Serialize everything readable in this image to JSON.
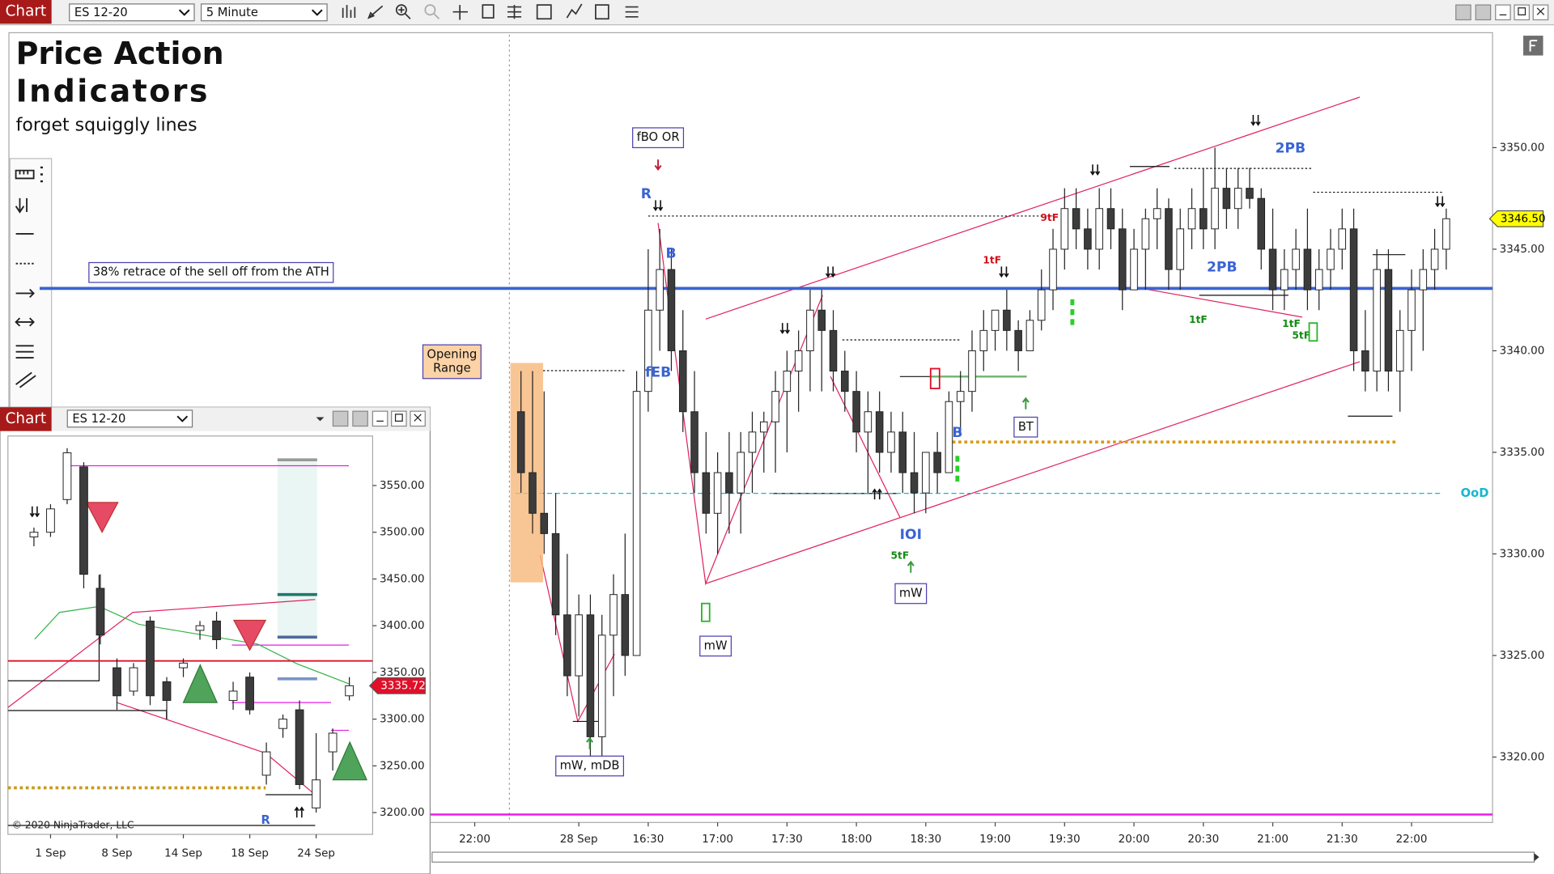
{
  "toolbar": {
    "app": "Chart",
    "instrument": "ES 12-20",
    "interval": "5 Minute"
  },
  "chart_data": [
    {
      "type": "candlestick",
      "title": [
        "Price Action",
        "Indicators"
      ],
      "subtitle": "forget squiggly lines",
      "categories": [
        "22:00",
        null,
        null,
        null,
        null,
        null,
        null,
        null,
        null,
        "28 Sep",
        null,
        null,
        null,
        null,
        null,
        "16:30",
        null,
        null,
        null,
        null,
        null,
        "17:00",
        null,
        null,
        null,
        null,
        null,
        "17:30",
        null,
        null,
        null,
        null,
        null,
        "18:00",
        null,
        null,
        null,
        null,
        null,
        "18:30",
        null,
        null,
        null,
        null,
        null,
        "19:00",
        null,
        null,
        null,
        null,
        null,
        "19:30",
        null,
        null,
        null,
        null,
        null,
        "20:00",
        null,
        null,
        null,
        null,
        null,
        "20:30",
        null,
        null,
        null,
        null,
        null,
        "21:00",
        null,
        null,
        null,
        null,
        null,
        "21:30",
        null,
        null,
        null,
        null,
        null,
        "22:00",
        null,
        null,
        null
      ],
      "open": [
        null,
        null,
        null,
        null,
        3337,
        3334,
        3332,
        3331,
        3327,
        3324,
        3327,
        3321,
        3326,
        3328,
        3325,
        3338,
        3342,
        3344,
        3340,
        3337,
        3334,
        3332,
        3334,
        3333,
        3335,
        3336,
        3336.5,
        3338,
        3339,
        3340,
        3342,
        3341,
        3339,
        3338,
        3336,
        3337,
        3335,
        3336,
        3334,
        3333,
        3335,
        3334,
        3337.5,
        3338,
        3340,
        3341,
        3342,
        3341,
        3340,
        3341.5,
        3343,
        3345,
        3347,
        3346,
        3345,
        3347,
        3346,
        3343,
        3345,
        3346.5,
        3347,
        3344,
        3346,
        3347,
        3346,
        3348,
        3347,
        3348,
        3347.5,
        3345,
        3343,
        3344,
        3345,
        3343,
        3344,
        3345,
        3346,
        3340,
        3339,
        3344,
        3339,
        3341,
        3343,
        3344,
        3345
      ],
      "high": [
        null,
        null,
        null,
        null,
        3339,
        3339,
        3338,
        3333,
        3330,
        3328,
        3328,
        3327,
        3329,
        3331,
        3339,
        3345,
        3346,
        3345,
        3342,
        3339,
        3336,
        3335,
        3336,
        3336,
        3337,
        3337,
        3339,
        3340,
        3341,
        3343,
        3343,
        3342,
        3340,
        3339,
        3338,
        3338,
        3337,
        3337,
        3336,
        3335,
        3336,
        3338,
        3339,
        3341,
        3342,
        3342,
        3343,
        3341.5,
        3342,
        3344,
        3346,
        3348,
        3348,
        3347,
        3348,
        3348,
        3347,
        3346,
        3347,
        3348,
        3347.5,
        3347,
        3348,
        3349,
        3350,
        3349,
        3349,
        3349,
        3348,
        3347,
        3345,
        3346,
        3347,
        3345,
        3346,
        3347,
        3347,
        3342,
        3345,
        3345,
        3342,
        3344,
        3345,
        3346,
        3347
      ],
      "low": [
        null,
        null,
        null,
        null,
        3333,
        3331,
        3330,
        3326,
        3323,
        3322,
        3320,
        3320,
        3323,
        3324,
        3325,
        3337,
        3340,
        3339,
        3336,
        3333,
        3331,
        3330,
        3331,
        3331,
        3333,
        3334,
        3334,
        3335,
        3337,
        3338,
        3338,
        3338,
        3337,
        3335,
        3333,
        3334,
        3334,
        3333,
        3332,
        3332,
        3333,
        3334,
        3336,
        3337,
        3339,
        3340,
        3340,
        3339,
        3340,
        3341,
        3342,
        3344,
        3345,
        3344,
        3344,
        3345,
        3342,
        3343,
        3343,
        3345,
        3343,
        3343,
        3345,
        3345,
        3345,
        3346,
        3346,
        3347,
        3344,
        3342,
        3342,
        3343,
        3342,
        3342,
        3343,
        3344,
        3339,
        3338,
        3338,
        3338,
        3337,
        3339,
        3340,
        3343,
        3344
      ],
      "close": [
        null,
        null,
        null,
        null,
        3334,
        3332,
        3331,
        3327,
        3324,
        3327,
        3321,
        3326,
        3328,
        3325,
        3338,
        3342,
        3344,
        3340,
        3337,
        3334,
        3332,
        3334,
        3333,
        3335,
        3336,
        3336.5,
        3338,
        3339,
        3340,
        3342,
        3341,
        3339,
        3338,
        3336,
        3337,
        3335,
        3336,
        3334,
        3333,
        3335,
        3334,
        3337.5,
        3338,
        3340,
        3341,
        3342,
        3341,
        3340,
        3341.5,
        3343,
        3345,
        3347,
        3346,
        3345,
        3347,
        3346,
        3343,
        3345,
        3346.5,
        3347,
        3344,
        3346,
        3347,
        3346,
        3348,
        3347,
        3348,
        3347.5,
        3345,
        3343,
        3344,
        3345,
        3343,
        3344,
        3345,
        3346,
        3340,
        3339,
        3344,
        3339,
        3341,
        3343,
        3344,
        3345,
        3346.5
      ],
      "up_color": "#ffffff",
      "down_color": "#3c3c3c",
      "ylim": [
        3316.78,
        3355.56
      ],
      "yticks": [
        {
          "value": 3320,
          "label": "3320.00"
        },
        {
          "value": 3325,
          "label": "3325.00"
        },
        {
          "value": 3330,
          "label": "3330.00"
        },
        {
          "value": 3335,
          "label": "3335.00"
        },
        {
          "value": 3340,
          "label": "3340.00"
        },
        {
          "value": 3345,
          "label": "3345.00"
        },
        {
          "value": 3350,
          "label": "3350.00"
        }
      ],
      "last_price": {
        "value": 3346.5,
        "label": "3346.50"
      },
      "opening_range": [
        3328.6,
        3339.4
      ],
      "levels": [
        {
          "value": 3343.07,
          "color": "#3a63d4",
          "style": "solid"
        },
        {
          "value": 3335.51,
          "color": "#d79a1a",
          "style": "dotted"
        },
        {
          "value": 3332.98,
          "color": "#17b6cf",
          "style": "dashed"
        },
        {
          "value": 3317.17,
          "color": "#e61ee6",
          "style": "solid"
        }
      ],
      "annotations": [
        "fBO OR",
        "R",
        "B",
        "fEB",
        "38% retrace of the sell off from the ATH",
        [
          "Opening",
          "Range"
        ],
        "mW, mDB",
        "mW",
        "mW",
        "IOI",
        "5tF",
        "BT",
        "B",
        "9tF",
        "1tF",
        "1tF",
        "2PB",
        "2PB",
        "1tF",
        "5tF",
        "OoD"
      ]
    },
    {
      "type": "candlestick",
      "title": "Chart",
      "instrument": "ES 12-20",
      "categories": [
        null,
        "1 Sep",
        null,
        null,
        null,
        "8 Sep",
        null,
        null,
        null,
        "14 Sep",
        null,
        null,
        null,
        "18 Sep",
        null,
        null,
        null,
        "24 Sep",
        null,
        null
      ],
      "open": [
        3495,
        3500,
        3535,
        3570,
        3440,
        3355,
        3330,
        3405,
        3340,
        3355,
        3395,
        3405,
        3320,
        3345,
        3240,
        3290,
        3310,
        3205,
        3265,
        3325
      ],
      "high": [
        3505,
        3530,
        3590,
        3575,
        3455,
        3365,
        3360,
        3410,
        3345,
        3365,
        3405,
        3415,
        3340,
        3350,
        3275,
        3305,
        3320,
        3285,
        3290,
        3345
      ],
      "low": [
        3485,
        3495,
        3530,
        3440,
        3380,
        3310,
        3325,
        3315,
        3300,
        3345,
        3385,
        3375,
        3310,
        3305,
        3230,
        3280,
        3225,
        3200,
        3245,
        3320
      ],
      "close": [
        3500,
        3525,
        3585,
        3455,
        3390,
        3325,
        3355,
        3325,
        3320,
        3360,
        3400,
        3385,
        3330,
        3310,
        3265,
        3300,
        3230,
        3235,
        3285,
        3335.72
      ],
      "up_color": "#ffffff",
      "down_color": "#3c3c3c",
      "ylim": [
        3176.7,
        3603
      ],
      "yticks": [
        {
          "value": 3200,
          "label": "3200.00"
        },
        {
          "value": 3250,
          "label": "3250.00"
        },
        {
          "value": 3300,
          "label": "3300.00"
        },
        {
          "value": 3350,
          "label": "3350.00"
        },
        {
          "value": 3400,
          "label": "3400.00"
        },
        {
          "value": 3450,
          "label": "3450.00"
        },
        {
          "value": 3500,
          "label": "3500.00"
        },
        {
          "value": 3550,
          "label": "3550.00"
        }
      ],
      "last_price": {
        "value": 3335.72,
        "label": "3335.72"
      },
      "levels": [
        {
          "value": 3362.3,
          "color": "#e0102a",
          "style": "solid"
        },
        {
          "value": 3226.5,
          "color": "#c99a1a",
          "style": "dotted"
        }
      ],
      "annotations": [
        "R",
        "© 2020 NinjaTrader, LLC"
      ]
    }
  ]
}
